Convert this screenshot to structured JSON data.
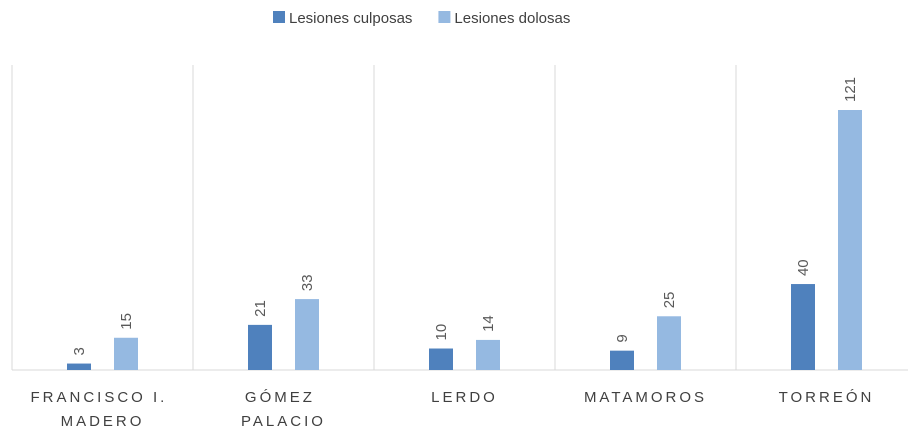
{
  "chart_data": {
    "type": "bar",
    "categories": [
      "FRANCISCO I. MADERO",
      "GÓMEZ PALACIO",
      "LERDO",
      "MATAMOROS",
      "TORREÓN"
    ],
    "series": [
      {
        "name": "Lesiones culposas",
        "color": "#4f81bd",
        "values": [
          3,
          21,
          10,
          9,
          40
        ]
      },
      {
        "name": "Lesiones dolosas",
        "color": "#95b9e1",
        "values": [
          15,
          33,
          14,
          25,
          121
        ]
      }
    ],
    "legend": "top"
  }
}
